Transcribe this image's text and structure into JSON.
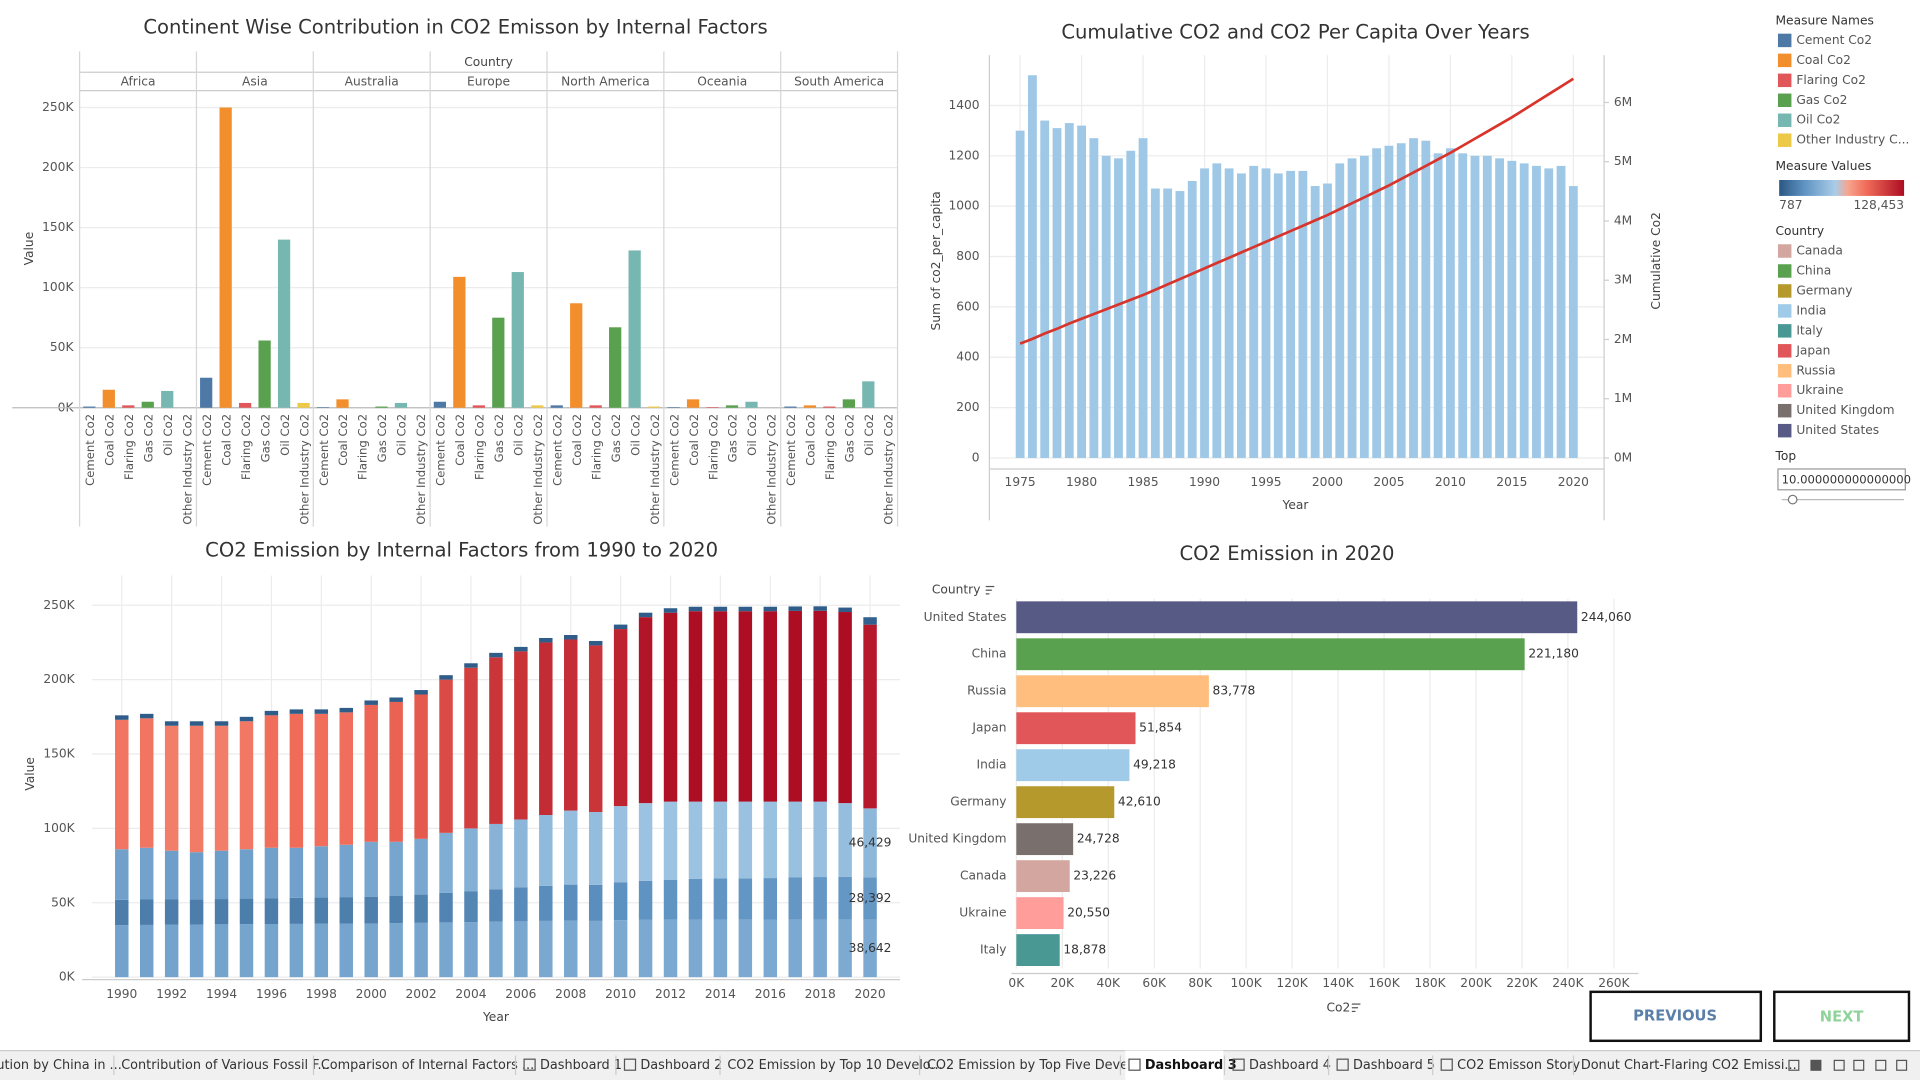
{
  "chart_data": [
    {
      "type": "bar",
      "title": "Continent Wise Contribution in CO2 Emisson by Internal Factors",
      "xlabel": "Country",
      "ylabel": "Value",
      "categories": [
        "Africa",
        "Asia",
        "Australia",
        "Europe",
        "North America",
        "Oceania",
        "South America"
      ],
      "series": [
        {
          "name": "Cement Co2",
          "color": "#4e79a7",
          "values": [
            1000,
            25000,
            500,
            5000,
            2000,
            500,
            1000
          ]
        },
        {
          "name": "Coal Co2",
          "color": "#f28e2b",
          "values": [
            15000,
            250000,
            7000,
            109000,
            87000,
            7000,
            2000
          ]
        },
        {
          "name": "Flaring Co2",
          "color": "#e15759",
          "values": [
            2000,
            4000,
            0,
            2000,
            2000,
            500,
            1000
          ]
        },
        {
          "name": "Gas Co2",
          "color": "#59a14f",
          "values": [
            5000,
            56000,
            1000,
            75000,
            67000,
            2000,
            7000
          ]
        },
        {
          "name": "Oil Co2",
          "color": "#76b7b2",
          "values": [
            14000,
            140000,
            4000,
            113000,
            131000,
            5000,
            22000
          ]
        },
        {
          "name": "Other Industry Co2",
          "color": "#edc948",
          "values": [
            0,
            4000,
            0,
            2000,
            1000,
            0,
            0
          ]
        }
      ],
      "ylim": [
        0,
        260000
      ],
      "yticks": [
        {
          "value": 0,
          "label": "0K"
        },
        {
          "value": 50000,
          "label": "50K"
        },
        {
          "value": 100000,
          "label": "100K"
        },
        {
          "value": 150000,
          "label": "150K"
        },
        {
          "value": 200000,
          "label": "200K"
        },
        {
          "value": 250000,
          "label": "250K"
        }
      ],
      "grid": true
    },
    {
      "type": "combo",
      "title": "Cumulative CO2 and CO2 Per Capita Over Years",
      "xlabel": "Year",
      "ylabel": "Sum of co2_per_capita",
      "y2label": "Cumulative Co2",
      "x": [
        1975,
        1976,
        1977,
        1978,
        1979,
        1980,
        1981,
        1982,
        1983,
        1984,
        1985,
        1986,
        1987,
        1988,
        1989,
        1990,
        1991,
        1992,
        1993,
        1994,
        1995,
        1996,
        1997,
        1998,
        1999,
        2000,
        2001,
        2002,
        2003,
        2004,
        2005,
        2006,
        2007,
        2008,
        2009,
        2010,
        2011,
        2012,
        2013,
        2014,
        2015,
        2016,
        2017,
        2018,
        2019,
        2020
      ],
      "series": [
        {
          "mark": "bar",
          "color": "#9ec8e6",
          "values": [
            1300,
            1520,
            1340,
            1310,
            1330,
            1320,
            1270,
            1200,
            1190,
            1220,
            1270,
            1070,
            1070,
            1060,
            1100,
            1150,
            1170,
            1150,
            1130,
            1160,
            1150,
            1130,
            1140,
            1140,
            1080,
            1090,
            1170,
            1190,
            1200,
            1230,
            1240,
            1250,
            1270,
            1260,
            1210,
            1230,
            1210,
            1200,
            1200,
            1190,
            1180,
            1170,
            1160,
            1150,
            1160,
            1080
          ]
        },
        {
          "mark": "line",
          "axis": "y2",
          "color": "#d9342b",
          "values": [
            1930000,
            2010000,
            2100000,
            2180000,
            2270000,
            2350000,
            2430000,
            2510000,
            2590000,
            2670000,
            2750000,
            2840000,
            2930000,
            3020000,
            3110000,
            3200000,
            3290000,
            3380000,
            3470000,
            3560000,
            3650000,
            3740000,
            3830000,
            3920000,
            4010000,
            4100000,
            4200000,
            4300000,
            4400000,
            4500000,
            4600000,
            4710000,
            4820000,
            4930000,
            5040000,
            5150000,
            5270000,
            5390000,
            5510000,
            5630000,
            5750000,
            5880000,
            6010000,
            6140000,
            6270000,
            6400000
          ]
        }
      ],
      "xlim": [
        1972.5,
        2022.5
      ],
      "xticks": [
        1975,
        1980,
        1985,
        1990,
        1995,
        2000,
        2005,
        2010,
        2015,
        2020
      ],
      "ylim": [
        0,
        1600
      ],
      "yticks": [
        0,
        200,
        400,
        600,
        800,
        1000,
        1200,
        1400
      ],
      "y2lim": [
        0,
        6800000
      ],
      "y2ticks": [
        {
          "value": 0,
          "label": "0M"
        },
        {
          "value": 1000000,
          "label": "1M"
        },
        {
          "value": 2000000,
          "label": "2M"
        },
        {
          "value": 3000000,
          "label": "3M"
        },
        {
          "value": 4000000,
          "label": "4M"
        },
        {
          "value": 5000000,
          "label": "5M"
        },
        {
          "value": 6000000,
          "label": "6M"
        }
      ],
      "grid": true
    },
    {
      "type": "stacked_bar",
      "title": "CO2 Emission by Internal Factors from 1990 to 2020",
      "xlabel": "Year",
      "ylabel": "Value",
      "x": [
        1990,
        1991,
        1992,
        1993,
        1994,
        1995,
        1996,
        1997,
        1998,
        1999,
        2000,
        2001,
        2002,
        2003,
        2004,
        2005,
        2006,
        2007,
        2008,
        2009,
        2010,
        2011,
        2012,
        2013,
        2014,
        2015,
        2016,
        2017,
        2018,
        2019,
        2020
      ],
      "series": [
        {
          "values": [
            35000,
            35100,
            35200,
            35300,
            35500,
            35600,
            35700,
            35800,
            35900,
            36000,
            36100,
            36300,
            36500,
            36800,
            37000,
            37300,
            37500,
            37800,
            38000,
            37800,
            38300,
            38500,
            38600,
            38700,
            38700,
            38600,
            38500,
            38600,
            38700,
            38800,
            38642
          ],
          "value_labels": [
            null,
            null,
            null,
            null,
            null,
            null,
            null,
            null,
            null,
            null,
            null,
            null,
            null,
            null,
            null,
            null,
            null,
            null,
            null,
            null,
            null,
            null,
            null,
            null,
            null,
            null,
            null,
            null,
            null,
            null,
            "38,642"
          ]
        },
        {
          "values": [
            17000,
            17100,
            17000,
            17000,
            17000,
            17200,
            17400,
            17500,
            17600,
            17800,
            18000,
            18500,
            19000,
            19800,
            20800,
            21800,
            22800,
            23600,
            24200,
            24300,
            25500,
            26300,
            26900,
            27300,
            27600,
            27800,
            28100,
            28400,
            28600,
            28700,
            28392
          ],
          "value_labels": [
            null,
            null,
            null,
            null,
            null,
            null,
            null,
            null,
            null,
            null,
            null,
            null,
            null,
            null,
            null,
            null,
            null,
            null,
            null,
            null,
            null,
            null,
            null,
            null,
            null,
            null,
            null,
            null,
            null,
            null,
            "28,392"
          ]
        },
        {
          "values": [
            34000,
            34800,
            32800,
            31700,
            32500,
            33200,
            33900,
            33700,
            34500,
            35200,
            36900,
            36200,
            37500,
            40400,
            42200,
            43900,
            45700,
            47600,
            49800,
            48900,
            51200,
            52200,
            52500,
            52000,
            51700,
            51600,
            51400,
            51000,
            50700,
            49500,
            46429
          ],
          "value_labels": [
            null,
            null,
            null,
            null,
            null,
            null,
            null,
            null,
            null,
            null,
            null,
            null,
            null,
            null,
            null,
            null,
            null,
            null,
            null,
            null,
            null,
            null,
            null,
            null,
            null,
            null,
            null,
            null,
            null,
            null,
            "46,429"
          ]
        },
        {
          "values": [
            87000,
            87000,
            84000,
            85000,
            84000,
            86000,
            89000,
            90000,
            89000,
            89000,
            92000,
            94000,
            97000,
            103000,
            108000,
            112000,
            113000,
            116000,
            115000,
            112000,
            119000,
            125000,
            127000,
            128000,
            128000,
            128000,
            128000,
            128200,
            128300,
            128453,
            123500
          ]
        },
        {
          "values": [
            3000,
            3000,
            3000,
            3000,
            3000,
            3000,
            3000,
            3000,
            3000,
            3000,
            3000,
            3000,
            3000,
            3000,
            3000,
            3000,
            3000,
            3000,
            3000,
            3000,
            3000,
            3000,
            3000,
            3000,
            3000,
            3000,
            3000,
            3000,
            3000,
            3000,
            5000
          ]
        }
      ],
      "xlim": [
        1988.8,
        2021.2
      ],
      "xticks": [
        1990,
        1992,
        1994,
        1996,
        1998,
        2000,
        2002,
        2004,
        2006,
        2008,
        2010,
        2012,
        2014,
        2016,
        2018,
        2020
      ],
      "ylim": [
        0,
        270000
      ],
      "yticks": [
        {
          "value": 0,
          "label": "0K"
        },
        {
          "value": 50000,
          "label": "50K"
        },
        {
          "value": 100000,
          "label": "100K"
        },
        {
          "value": 150000,
          "label": "150K"
        },
        {
          "value": 200000,
          "label": "200K"
        },
        {
          "value": 250000,
          "label": "250K"
        }
      ],
      "grid": true
    },
    {
      "type": "hbar",
      "title": "CO2 Emission in 2020",
      "xlabel": "Co2",
      "ylabel": "Country",
      "categories": [
        "United States",
        "China",
        "Russia",
        "Japan",
        "India",
        "Germany",
        "United Kingdom",
        "Canada",
        "Ukraine",
        "Italy"
      ],
      "values": [
        244060,
        221180,
        83778,
        51854,
        49218,
        42610,
        24728,
        23226,
        20550,
        18878
      ],
      "value_labels": [
        "244,060",
        "221,180",
        "83,778",
        "51,854",
        "49,218",
        "42,610",
        "24,728",
        "23,226",
        "20,550",
        "18,878"
      ],
      "colors": [
        "#575a85",
        "#59a14f",
        "#ffbe7d",
        "#e15759",
        "#a0cbe8",
        "#b6992d",
        "#79706e",
        "#d4a6a0",
        "#ff9d9a",
        "#499894"
      ],
      "xlim": [
        0,
        260000
      ],
      "xticks": [
        {
          "value": 0,
          "label": "0K"
        },
        {
          "value": 20000,
          "label": "20K"
        },
        {
          "value": 40000,
          "label": "40K"
        },
        {
          "value": 60000,
          "label": "60K"
        },
        {
          "value": 80000,
          "label": "80K"
        },
        {
          "value": 100000,
          "label": "100K"
        },
        {
          "value": 120000,
          "label": "120K"
        },
        {
          "value": 140000,
          "label": "140K"
        },
        {
          "value": 160000,
          "label": "160K"
        },
        {
          "value": 180000,
          "label": "180K"
        },
        {
          "value": 200000,
          "label": "200K"
        },
        {
          "value": 220000,
          "label": "220K"
        },
        {
          "value": 240000,
          "label": "240K"
        },
        {
          "value": 260000,
          "label": "260K"
        }
      ],
      "grid": true
    }
  ],
  "legend_panel": {
    "measure_names": {
      "title": "Measure Names",
      "items": [
        {
          "name": "Cement Co2",
          "color": "#4e79a7"
        },
        {
          "name": "Coal Co2",
          "color": "#f28e2b"
        },
        {
          "name": "Flaring Co2",
          "color": "#e15759"
        },
        {
          "name": "Gas Co2",
          "color": "#59a14f"
        },
        {
          "name": "Oil Co2",
          "color": "#76b7b2"
        },
        {
          "name": "Other Industry C...",
          "color": "#edc948"
        }
      ]
    },
    "measure_values": {
      "title": "Measure Values",
      "min": 787,
      "max": {
        "value": 128453,
        "label": "128,453"
      },
      "stops": [
        {
          "offset": 0,
          "color": "#2a5783"
        },
        {
          "offset": 0.2,
          "color": "#5f93c2"
        },
        {
          "offset": 0.45,
          "color": "#a9cde8"
        },
        {
          "offset": 0.55,
          "color": "#f7a58f"
        },
        {
          "offset": 0.7,
          "color": "#f06b58"
        },
        {
          "offset": 1,
          "color": "#ad0d23"
        }
      ]
    },
    "country": {
      "title": "Country",
      "items": [
        {
          "name": "Canada",
          "color": "#d4a6a0"
        },
        {
          "name": "China",
          "color": "#59a14f"
        },
        {
          "name": "Germany",
          "color": "#b6992d"
        },
        {
          "name": "India",
          "color": "#a0cbe8"
        },
        {
          "name": "Italy",
          "color": "#499894"
        },
        {
          "name": "Japan",
          "color": "#e15759"
        },
        {
          "name": "Russia",
          "color": "#ffbe7d"
        },
        {
          "name": "Ukraine",
          "color": "#ff9d9a"
        },
        {
          "name": "United Kingdom",
          "color": "#79706e"
        },
        {
          "name": "United States",
          "color": "#575a85"
        }
      ]
    },
    "top": {
      "title": "Top",
      "value": "10.000000000000000"
    }
  },
  "buttons": {
    "previous": "PREVIOUS",
    "next": "NEXT"
  },
  "tabs": {
    "active": 7,
    "items": [
      "ution by China in ...",
      "Contribution of Various Fossil F...",
      "Comparison of Internal Factors ...",
      "Dashboard 1",
      "Dashboard 2",
      "CO2 Emission by Top 10 Develo...",
      "CO2 Emission by Top Five Devel...",
      "Dashboard 3",
      "Dashboard 4",
      "Dashboard 5",
      "CO2 Emisson Story",
      "Donut Chart-Flaring CO2 Emissi..."
    ]
  }
}
